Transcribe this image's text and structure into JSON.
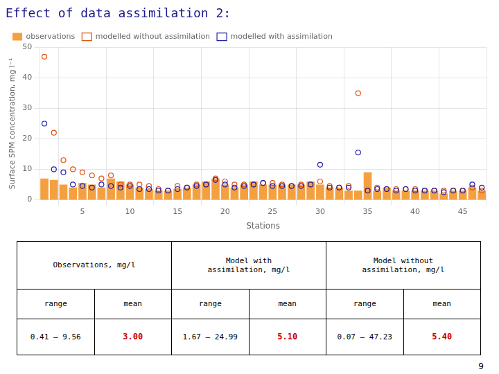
{
  "chart_data": {
    "type": "bar",
    "title": "Effect of data assimilation 2:",
    "xlabel": "Stations",
    "ylabel": "Surface SPM concentration, mg l⁻¹",
    "x": [
      1,
      2,
      3,
      4,
      5,
      6,
      7,
      8,
      9,
      10,
      11,
      12,
      13,
      14,
      15,
      16,
      17,
      18,
      19,
      20,
      21,
      22,
      23,
      24,
      25,
      26,
      27,
      28,
      29,
      30,
      31,
      32,
      33,
      34,
      35,
      36,
      37,
      38,
      39,
      40,
      41,
      42,
      43,
      44,
      45,
      46,
      47
    ],
    "series": [
      {
        "name": "observations",
        "type": "bar",
        "color": "#f5a040",
        "values": [
          7,
          6.5,
          5,
          4,
          5.5,
          5,
          4,
          7,
          6,
          5,
          4,
          3.5,
          3,
          3,
          3.5,
          4,
          5,
          6,
          7,
          5,
          4,
          5,
          6,
          5,
          5,
          5,
          5,
          5,
          6,
          5,
          4,
          4,
          3,
          3,
          9,
          3,
          4,
          3,
          3,
          3,
          3,
          3,
          2,
          3,
          3,
          4,
          3
        ]
      },
      {
        "name": "modelled without assimilation",
        "type": "scatter",
        "color": "#e05010",
        "marker": "circle",
        "values": [
          47,
          22,
          13,
          10,
          9,
          8,
          7,
          8,
          5,
          5,
          5,
          4.5,
          3.5,
          3,
          4.5,
          4,
          5,
          5,
          7,
          6,
          5,
          5,
          5,
          5.5,
          5.5,
          5,
          4.5,
          5,
          5,
          6,
          4.5,
          4,
          4.5,
          35,
          3,
          4,
          3.5,
          3.5,
          3.5,
          3.5,
          3,
          3,
          3,
          3,
          3,
          4,
          3
        ]
      },
      {
        "name": "modelled with assimilation",
        "type": "scatter",
        "color": "#2020aa",
        "marker": "circle",
        "values": [
          25,
          10,
          9,
          5,
          4.5,
          4,
          5,
          4.5,
          4,
          4.5,
          3.5,
          3.5,
          3,
          3,
          3.5,
          4,
          4.5,
          5,
          6.5,
          5,
          4,
          4.5,
          5,
          5.5,
          4.5,
          4.5,
          4.5,
          4.5,
          5,
          11.5,
          4,
          4,
          4,
          15.5,
          3,
          3.5,
          3.5,
          3,
          3.5,
          3,
          3,
          3,
          2.5,
          3,
          3,
          5,
          4
        ]
      }
    ],
    "xlim": [
      0.5,
      47.5
    ],
    "xticks": [
      5,
      10,
      15,
      20,
      25,
      30,
      35,
      40,
      45
    ],
    "ylim": [
      0,
      50
    ],
    "yticks": [
      0,
      10,
      20,
      30,
      40,
      50
    ],
    "grid": true,
    "legend": "upper left",
    "table": {
      "groups": [
        "Observations, mg/l",
        "Model with\nassimilation, mg/l",
        "Model without\nassimilation, mg/l"
      ],
      "subheaders": [
        "range",
        "mean"
      ],
      "rows": [
        [
          "0.41 – 9.56",
          "3.00"
        ],
        [
          "1.67 – 24.99",
          "5.10"
        ],
        [
          "0.07 – 47.23",
          "5.40"
        ]
      ]
    },
    "annotations": [
      "9"
    ]
  }
}
